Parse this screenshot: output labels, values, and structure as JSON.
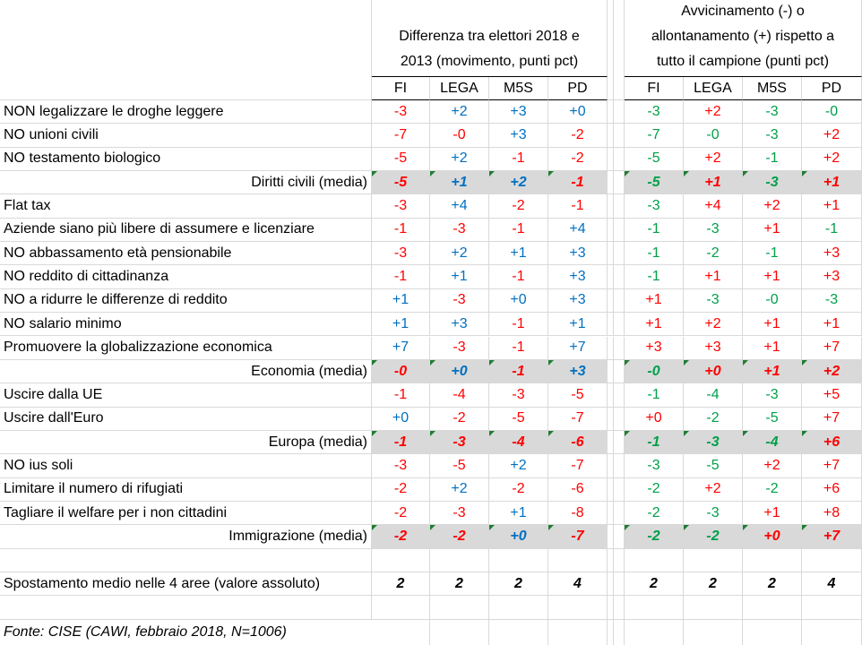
{
  "header": {
    "group1_title_lines": [
      "Differenza tra elettori 2018 e",
      "2013 (movimento, punti pct)"
    ],
    "group2_title_lines": [
      "Avvicinamento (-) o",
      "allontanamento (+) rispetto a",
      "tutto il campione (punti pct)"
    ],
    "parties": [
      "FI",
      "LEGA",
      "M5S",
      "PD"
    ]
  },
  "rows": [
    {
      "label": "NON legalizzare le droghe leggere",
      "type": "item",
      "g1": [
        "-3",
        "+2",
        "+3",
        "+0"
      ],
      "g2": [
        "-3",
        "+2",
        "-3",
        "-0"
      ]
    },
    {
      "label": "NO unioni civili",
      "type": "item",
      "g1": [
        "-7",
        "-0",
        "+3",
        "-2"
      ],
      "g2": [
        "-7",
        "-0",
        "-3",
        "+2"
      ]
    },
    {
      "label": "NO testamento biologico",
      "type": "item",
      "g1": [
        "-5",
        "+2",
        "-1",
        "-2"
      ],
      "g2": [
        "-5",
        "+2",
        "-1",
        "+2"
      ]
    },
    {
      "label": "Diritti civili (media)",
      "type": "avg",
      "g1": [
        "-5",
        "+1",
        "+2",
        "-1"
      ],
      "g2": [
        "-5",
        "+1",
        "-3",
        "+1"
      ]
    },
    {
      "label": "Flat tax",
      "type": "item",
      "g1": [
        "-3",
        "+4",
        "-2",
        "-1"
      ],
      "g2": [
        "-3",
        "+4",
        "+2",
        "+1"
      ]
    },
    {
      "label": "Aziende siano più libere di assumere e licenziare",
      "type": "item",
      "g1": [
        "-1",
        "-3",
        "-1",
        "+4"
      ],
      "g2": [
        "-1",
        "-3",
        "+1",
        "-1"
      ]
    },
    {
      "label": "NO abbassamento età pensionabile",
      "type": "item",
      "g1": [
        "-3",
        "+2",
        "+1",
        "+3"
      ],
      "g2": [
        "-1",
        "-2",
        "-1",
        "+3"
      ]
    },
    {
      "label": "NO reddito di cittadinanza",
      "type": "item",
      "g1": [
        "-1",
        "+1",
        "-1",
        "+3"
      ],
      "g2": [
        "-1",
        "+1",
        "+1",
        "+3"
      ]
    },
    {
      "label": "NO a ridurre le differenze di reddito",
      "type": "item",
      "g1": [
        "+1",
        "-3",
        "+0",
        "+3"
      ],
      "g2": [
        "+1",
        "-3",
        "-0",
        "-3"
      ]
    },
    {
      "label": "NO salario minimo",
      "type": "item",
      "g1": [
        "+1",
        "+3",
        "-1",
        "+1"
      ],
      "g2": [
        "+1",
        "+2",
        "+1",
        "+1"
      ]
    },
    {
      "label": "Promuovere la globalizzazione economica",
      "type": "item",
      "g1": [
        "+7",
        "-3",
        "-1",
        "+7"
      ],
      "g2": [
        "+3",
        "+3",
        "+1",
        "+7"
      ]
    },
    {
      "label": "Economia (media)",
      "type": "avg",
      "g1": [
        "-0",
        "+0",
        "-1",
        "+3"
      ],
      "g2": [
        "-0",
        "+0",
        "+1",
        "+2"
      ]
    },
    {
      "label": "Uscire dalla UE",
      "type": "item",
      "g1": [
        "-1",
        "-4",
        "-3",
        "-5"
      ],
      "g2": [
        "-1",
        "-4",
        "-3",
        "+5"
      ]
    },
    {
      "label": "Uscire dall'Euro",
      "type": "item",
      "g1": [
        "+0",
        "-2",
        "-5",
        "-7"
      ],
      "g2": [
        "+0",
        "-2",
        "-5",
        "+7"
      ]
    },
    {
      "label": "Europa (media)",
      "type": "avg",
      "g1": [
        "-1",
        "-3",
        "-4",
        "-6"
      ],
      "g2": [
        "-1",
        "-3",
        "-4",
        "+6"
      ]
    },
    {
      "label": "NO ius soli",
      "type": "item",
      "g1": [
        "-3",
        "-5",
        "+2",
        "-7"
      ],
      "g2": [
        "-3",
        "-5",
        "+2",
        "+7"
      ]
    },
    {
      "label": "Limitare il numero di rifugiati",
      "type": "item",
      "g1": [
        "-2",
        "+2",
        "-2",
        "-6"
      ],
      "g2": [
        "-2",
        "+2",
        "-2",
        "+6"
      ]
    },
    {
      "label": "Tagliare il welfare per i non cittadini",
      "type": "item",
      "g1": [
        "-2",
        "-3",
        "+1",
        "-8"
      ],
      "g2": [
        "-2",
        "-3",
        "+1",
        "+8"
      ]
    },
    {
      "label": "Immigrazione (media)",
      "type": "avg",
      "g1": [
        "-2",
        "-2",
        "+0",
        "-7"
      ],
      "g2": [
        "-2",
        "-2",
        "+0",
        "+7"
      ]
    },
    {
      "label": "",
      "type": "blank",
      "g1": [
        "",
        "",
        "",
        ""
      ],
      "g2": [
        "",
        "",
        "",
        ""
      ]
    },
    {
      "label": "Spostamento medio nelle 4 aree (valore assoluto)",
      "type": "total",
      "g1": [
        "2",
        "2",
        "2",
        "4"
      ],
      "g2": [
        "2",
        "2",
        "2",
        "4"
      ]
    },
    {
      "label": "",
      "type": "blank",
      "g1": [
        "",
        "",
        "",
        ""
      ],
      "g2": [
        "",
        "",
        "",
        ""
      ]
    }
  ],
  "note": "Fonte: CISE (CAWI, febbraio 2018, N=1006)",
  "colors": {
    "negative": "#ff0000",
    "positive_g1": "#0070c0",
    "negative_g2": "#00a04a",
    "positive_g2": "#ff0000",
    "avg_bg": "#d9d9d9"
  }
}
